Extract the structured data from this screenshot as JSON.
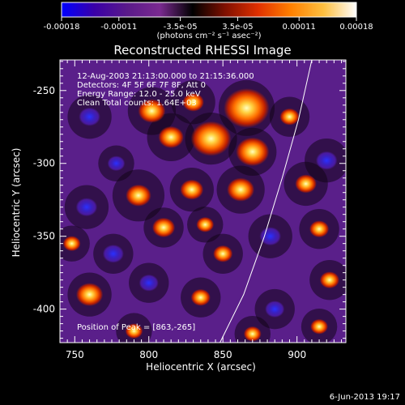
{
  "chart_data": {
    "type": "heatmap",
    "title": "Reconstructed RHESSI Image",
    "xlabel": "Heliocentric X (arcsec)",
    "ylabel": "Heliocentric Y (arcsec)",
    "xlim": [
      740,
      933
    ],
    "ylim": [
      -423,
      -229
    ],
    "x_ticks": [
      "750",
      "800",
      "850",
      "900"
    ],
    "x_tick_values": [
      750,
      800,
      850,
      900
    ],
    "y_ticks": [
      "-250",
      "-300",
      "-350",
      "-400"
    ],
    "y_tick_values": [
      -250,
      -300,
      -350,
      -400
    ],
    "colorbar": {
      "ticks": [
        "-0.00018",
        "-0.00011",
        "-3.5e-05",
        "3.5e-05",
        "0.00011",
        "0.00018"
      ],
      "tick_values": [
        -0.00018,
        -0.00011,
        -3.5e-05,
        3.5e-05,
        0.00011,
        0.00018
      ],
      "range": [
        -0.00018,
        0.00018
      ],
      "units_text": "(photons cm⁻² s⁻¹ asec⁻²)",
      "colors": [
        "#0000ff",
        "#3a00a8",
        "#5a1a8a",
        "#7a2a90",
        "#000000",
        "#801000",
        "#e03000",
        "#ff8000",
        "#ffc040",
        "#ffffff"
      ]
    },
    "annotations": [
      "12-Aug-2003 21:13:00.000 to 21:15:36.000",
      "Detectors: 4F 5F 6F 7F 8F, Att 0",
      "Energy Range: 12.0 - 25.0 keV",
      "Clean    Total counts: 1.64E+03"
    ],
    "peak_text": "Position of Peak = [863,-265]",
    "peak": [
      863,
      -265
    ],
    "limb_curve": [
      [
        848,
        -423
      ],
      [
        864,
        -390
      ],
      [
        878,
        -350
      ],
      [
        890,
        -310
      ],
      [
        901,
        -270
      ],
      [
        910,
        -229
      ]
    ],
    "blobs": [
      {
        "x": 760,
        "y": -268,
        "w": 11,
        "v": -0.6
      },
      {
        "x": 815,
        "y": -282,
        "w": 12,
        "v": 0.65
      },
      {
        "x": 778,
        "y": -300,
        "w": 9,
        "v": -0.55
      },
      {
        "x": 802,
        "y": -264,
        "w": 12,
        "v": 0.7
      },
      {
        "x": 830,
        "y": -258,
        "w": 11,
        "v": 0.55
      },
      {
        "x": 842,
        "y": -283,
        "w": 13,
        "v": 0.95
      },
      {
        "x": 866,
        "y": -262,
        "w": 14,
        "v": 1.0
      },
      {
        "x": 870,
        "y": -292,
        "w": 12,
        "v": 0.85
      },
      {
        "x": 895,
        "y": -268,
        "w": 10,
        "v": 0.6
      },
      {
        "x": 920,
        "y": -298,
        "w": 11,
        "v": -0.6
      },
      {
        "x": 906,
        "y": -314,
        "w": 11,
        "v": 0.55
      },
      {
        "x": 862,
        "y": -318,
        "w": 12,
        "v": 0.7
      },
      {
        "x": 829,
        "y": -318,
        "w": 11,
        "v": 0.65
      },
      {
        "x": 793,
        "y": -322,
        "w": 13,
        "v": 0.55
      },
      {
        "x": 758,
        "y": -330,
        "w": 11,
        "v": -0.5
      },
      {
        "x": 810,
        "y": -344,
        "w": 10,
        "v": 0.7
      },
      {
        "x": 838,
        "y": -342,
        "w": 9,
        "v": 0.6
      },
      {
        "x": 748,
        "y": -355,
        "w": 9,
        "v": 0.55
      },
      {
        "x": 776,
        "y": -362,
        "w": 10,
        "v": -0.65
      },
      {
        "x": 850,
        "y": -362,
        "w": 10,
        "v": 0.55
      },
      {
        "x": 882,
        "y": -350,
        "w": 11,
        "v": -0.6
      },
      {
        "x": 915,
        "y": -345,
        "w": 10,
        "v": 0.5
      },
      {
        "x": 922,
        "y": -380,
        "w": 10,
        "v": 0.6
      },
      {
        "x": 800,
        "y": -382,
        "w": 10,
        "v": -0.55
      },
      {
        "x": 760,
        "y": -390,
        "w": 11,
        "v": 0.75
      },
      {
        "x": 835,
        "y": -392,
        "w": 10,
        "v": 0.5
      },
      {
        "x": 885,
        "y": -400,
        "w": 10,
        "v": -0.5
      },
      {
        "x": 790,
        "y": -415,
        "w": 9,
        "v": 0.5
      },
      {
        "x": 870,
        "y": -417,
        "w": 9,
        "v": 0.55
      },
      {
        "x": 915,
        "y": -412,
        "w": 9,
        "v": 0.55
      }
    ]
  },
  "footer": {
    "date_text": "6-Jun-2013 19:17"
  }
}
